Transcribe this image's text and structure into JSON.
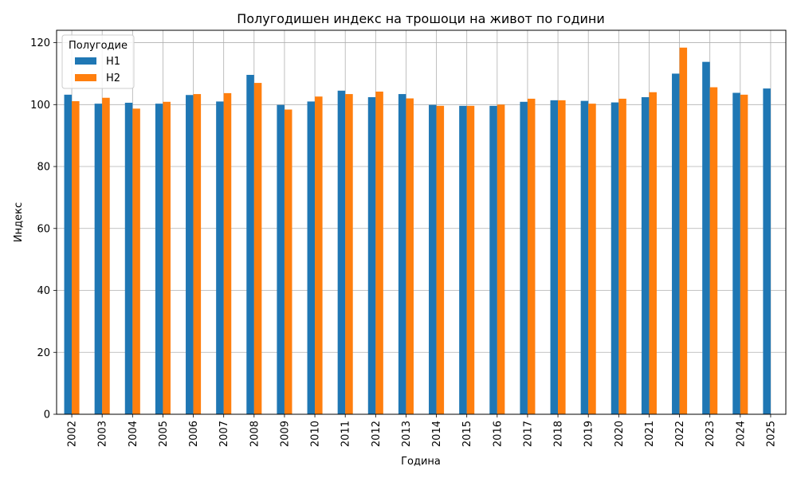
{
  "chart_data": {
    "type": "bar",
    "title": "Полугодишен индекс на трошоци на живот по години",
    "xlabel": "Година",
    "ylabel": "Индекс",
    "categories": [
      "2002",
      "2003",
      "2004",
      "2005",
      "2006",
      "2007",
      "2008",
      "2009",
      "2010",
      "2011",
      "2012",
      "2013",
      "2014",
      "2015",
      "2016",
      "2017",
      "2018",
      "2019",
      "2020",
      "2021",
      "2022",
      "2023",
      "2024",
      "2025"
    ],
    "series": [
      {
        "name": "H1",
        "color": "#1f77b4",
        "values": [
          103.2,
          100.3,
          100.6,
          100.3,
          103.1,
          101.0,
          109.6,
          99.9,
          101.0,
          104.5,
          102.4,
          103.4,
          99.9,
          99.6,
          99.6,
          100.9,
          101.4,
          101.2,
          100.7,
          102.4,
          110.0,
          113.8,
          103.8,
          105.2
        ]
      },
      {
        "name": "H2",
        "color": "#ff7f0e",
        "values": [
          101.1,
          102.2,
          98.7,
          100.9,
          103.4,
          103.7,
          107.0,
          98.4,
          102.6,
          103.4,
          104.2,
          102.0,
          99.6,
          99.6,
          100.0,
          101.9,
          101.4,
          100.3,
          101.9,
          104.0,
          118.4,
          105.6,
          103.2,
          null
        ]
      }
    ],
    "ylim": [
      0,
      124
    ],
    "yticks": [
      0,
      20,
      40,
      60,
      80,
      100,
      120
    ],
    "grid": true,
    "legend": {
      "title": "Полугодие",
      "position": "top-left"
    }
  }
}
